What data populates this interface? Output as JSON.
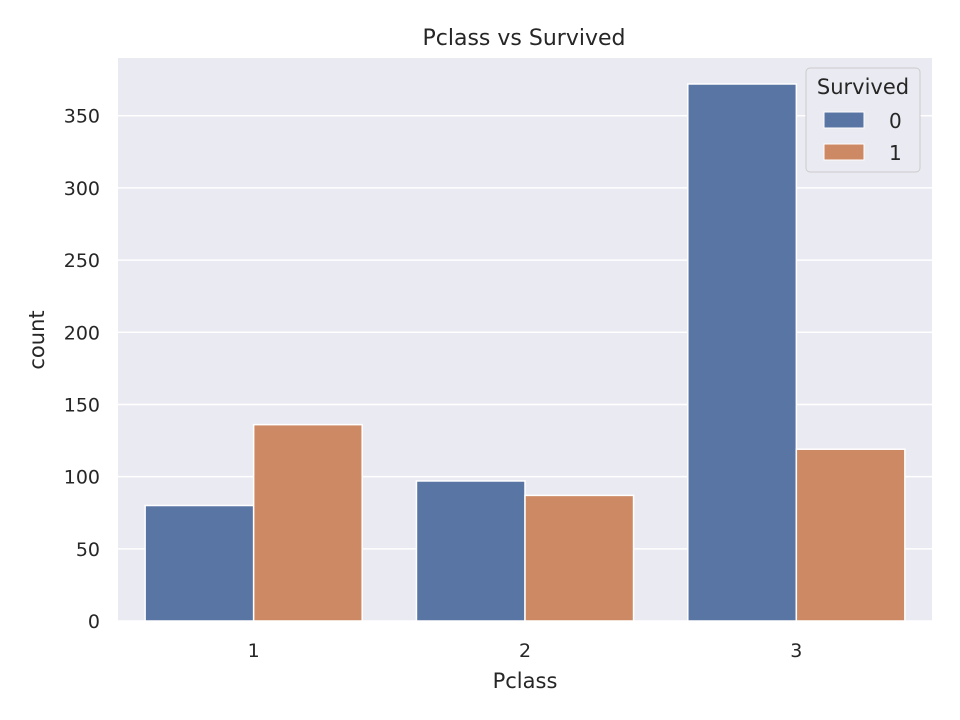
{
  "chart_data": {
    "type": "bar",
    "title": "Pclass vs Survived",
    "xlabel": "Pclass",
    "ylabel": "count",
    "categories": [
      "1",
      "2",
      "3"
    ],
    "series": [
      {
        "name": "0",
        "values": [
          80,
          97,
          372
        ]
      },
      {
        "name": "1",
        "values": [
          136,
          87,
          119
        ]
      }
    ],
    "ylim": [
      0,
      390
    ],
    "yticks": [
      0,
      50,
      100,
      150,
      200,
      250,
      300,
      350
    ],
    "legend": {
      "title": "Survived",
      "position": "top-right"
    },
    "grid": true,
    "colors": {
      "series": [
        "#5975a4",
        "#cc8963"
      ],
      "background": "#eaeaf2",
      "grid": "#ffffff"
    }
  }
}
